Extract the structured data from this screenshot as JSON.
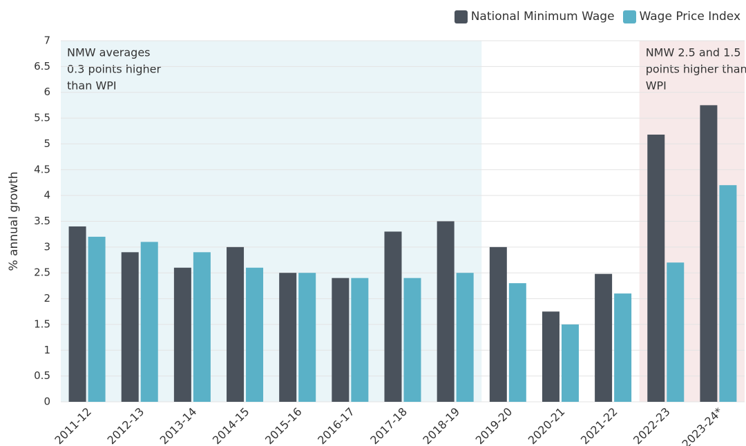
{
  "chart_data": {
    "type": "bar",
    "y_label": "% annual growth",
    "categories": [
      "2011-12",
      "2012-13",
      "2013-14",
      "2014-15",
      "2015-16",
      "2016-17",
      "2017-18",
      "2018-19",
      "2019-20",
      "2020-21",
      "2021-22",
      "2022-23",
      "2023-24*"
    ],
    "series": [
      {
        "name": "National Minimum Wage",
        "color": "#4a525c",
        "values": [
          3.4,
          2.9,
          2.6,
          3.0,
          2.5,
          2.4,
          3.3,
          3.5,
          3.0,
          1.75,
          2.48,
          5.18,
          5.75
        ]
      },
      {
        "name": "Wage Price Index",
        "color": "#5ab1c7",
        "values": [
          3.2,
          3.1,
          2.9,
          2.6,
          2.5,
          2.4,
          2.4,
          2.5,
          2.3,
          1.5,
          2.1,
          2.7,
          4.2
        ]
      }
    ],
    "annotations": [
      {
        "lines": [
          "NMW averages",
          "0.3 points higher",
          "than WPI"
        ],
        "color": "#eaf5f8"
      },
      {
        "lines": [
          "NMW 2.5 and 1.5",
          "points higher than",
          "WPI"
        ],
        "color": "#f7e9e9"
      }
    ],
    "ylim": [
      0,
      7
    ],
    "yticks": [
      0,
      0.5,
      1,
      1.5,
      2,
      2.5,
      3,
      3.5,
      4,
      4.5,
      5,
      5.5,
      6,
      6.5,
      7
    ],
    "grid": true,
    "legend": "top-right"
  }
}
